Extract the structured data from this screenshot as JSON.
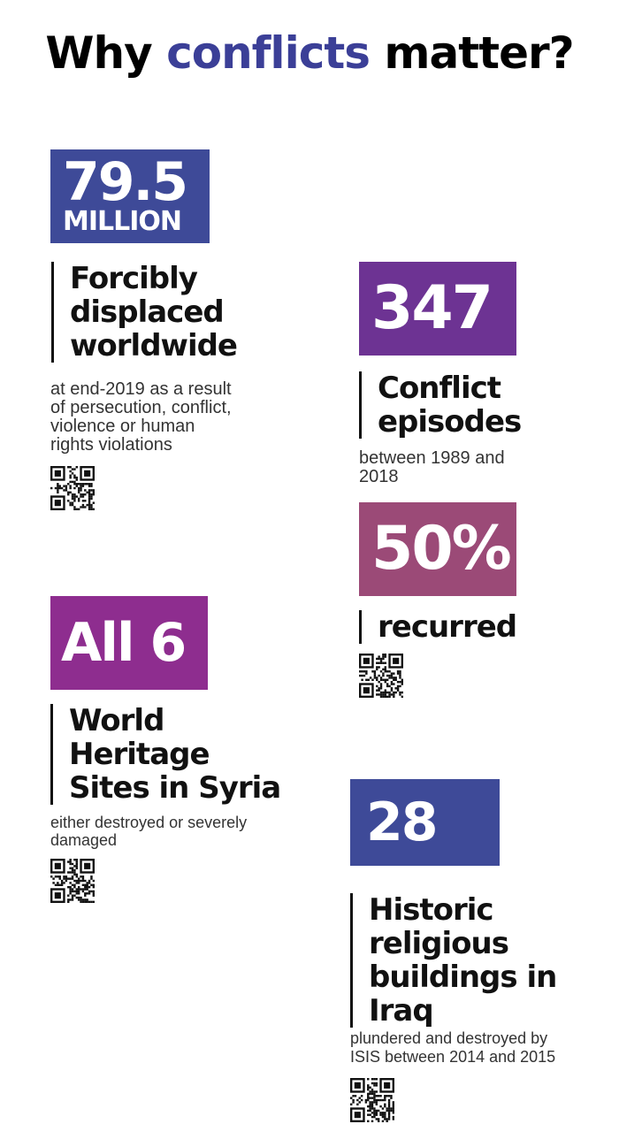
{
  "title": {
    "before": "Why ",
    "highlight": "conflicts",
    "after": " matter?"
  },
  "colors": {
    "blue": "#3e4a98",
    "purple": "#6d3393",
    "magenta": "#8e2d8f",
    "rose": "#9b4a77"
  },
  "stats": {
    "displaced": {
      "number": "79.5",
      "unit": "MILLION",
      "heading": "Forcibly\ndisplaced\nworldwide",
      "description": "at end-2019 as a result\nof persecution, conflict,\nviolence or human\nrights violations"
    },
    "conflicts": {
      "number": "347",
      "heading": "Conflict\nepisodes",
      "description": "between 1989 and\n2018"
    },
    "recurred": {
      "number": "50%",
      "heading": "recurred"
    },
    "heritage": {
      "number": "All 6",
      "heading": "World\nHeritage\nSites in Syria",
      "description": "either destroyed or severely\ndamaged"
    },
    "religious": {
      "number": "28",
      "heading": "Historic\nreligious\nbuildings in\nIraq",
      "description": "plundered and destroyed by\nISIS between 2014 and 2015"
    }
  },
  "qr_codes": [
    {
      "icon": "qr-code-icon"
    },
    {
      "icon": "qr-code-icon"
    },
    {
      "icon": "qr-code-icon"
    },
    {
      "icon": "qr-code-icon"
    }
  ]
}
